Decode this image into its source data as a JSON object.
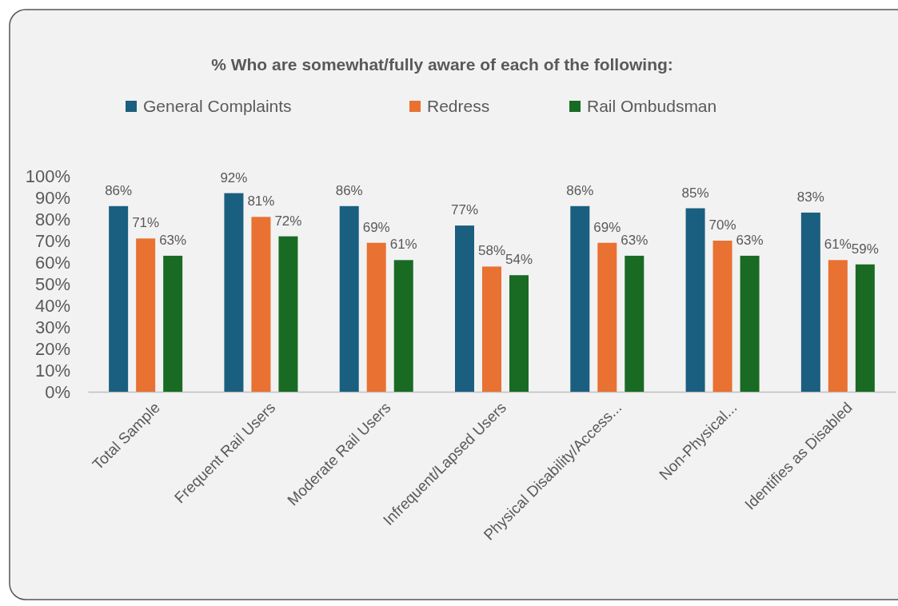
{
  "chart_data": {
    "type": "bar",
    "title": "% Who are somewhat/fully aware of each of the following:",
    "categories": [
      "Total Sample",
      "Frequent Rail Users",
      "Moderate Rail Users",
      "Infrequent/Lapsed Users",
      "Physical Disability/Access...",
      "Non-Physical...",
      "Identifies as Disabled"
    ],
    "series": [
      {
        "name": "General Complaints",
        "color": "#1a5f80",
        "values": [
          86,
          92,
          86,
          77,
          86,
          85,
          83
        ],
        "value_labels": [
          "86%",
          "92%",
          "86%",
          "77%",
          "86%",
          "85%",
          "83%"
        ]
      },
      {
        "name": "Redress",
        "color": "#e97132",
        "values": [
          71,
          81,
          69,
          58,
          69,
          70,
          61
        ],
        "value_labels": [
          "71%",
          "81%",
          "69%",
          "58%",
          "69%",
          "70%",
          "61%"
        ]
      },
      {
        "name": "Rail Ombudsman",
        "color": "#196b24",
        "values": [
          63,
          72,
          61,
          54,
          63,
          63,
          59
        ],
        "value_labels": [
          "63%",
          "72%",
          "61%",
          "54%",
          "63%",
          "63%",
          "59%"
        ]
      }
    ],
    "ylim": [
      0,
      100
    ],
    "yticks": [
      {
        "value": 0,
        "label": "0%"
      },
      {
        "value": 10,
        "label": "10%"
      },
      {
        "value": 20,
        "label": "20%"
      },
      {
        "value": 30,
        "label": "30%"
      },
      {
        "value": 40,
        "label": "40%"
      },
      {
        "value": 50,
        "label": "50%"
      },
      {
        "value": 60,
        "label": "60%"
      },
      {
        "value": 70,
        "label": "70%"
      },
      {
        "value": 80,
        "label": "80%"
      },
      {
        "value": 90,
        "label": "90%"
      },
      {
        "value": 100,
        "label": "100%"
      }
    ],
    "grid": false,
    "legend": "top"
  }
}
